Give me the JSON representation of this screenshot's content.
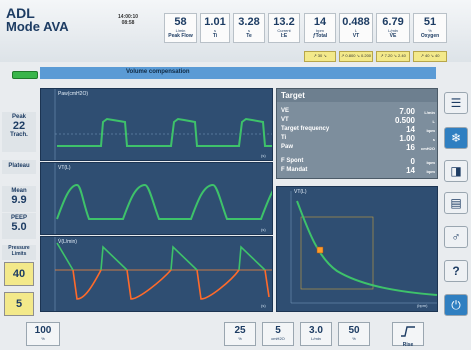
{
  "header": {
    "brand": "ADL",
    "mode": "Mode AVA",
    "time": "14:00:10",
    "time2": "08:58",
    "measurements": [
      {
        "value": "58",
        "unit": "L/min",
        "label": "Peak Flow"
      },
      {
        "value": "1.01",
        "unit": "s",
        "label": "Ti"
      },
      {
        "value": "3.28",
        "unit": "s",
        "label": "Te"
      },
      {
        "value": "13.2",
        "unit": "Current",
        "label": "I:E"
      },
      {
        "value": "14",
        "unit": "bpm",
        "label": "ƒTotal"
      },
      {
        "value": "0.488",
        "unit": "L",
        "label": "VT"
      },
      {
        "value": "6.79",
        "unit": "L/min",
        "label": "V̇E"
      },
      {
        "value": "51",
        "unit": "%",
        "label": "Oxygen"
      }
    ],
    "alarm_limits": [
      "↗ 30  ↘",
      "↗ 0.800  ↘ 0.200",
      "↗ 7.20  ↘ 2.40",
      "↗ 40  ↘ 40"
    ]
  },
  "mode_bar": {
    "label": "Volume compensation"
  },
  "left_panel": {
    "peak_label": "Peak",
    "peak_value": "22",
    "trach_label": "Trach.",
    "plateau_label": "Plateau",
    "mean_label": "Mean",
    "mean_value": "9.9",
    "peep_label": "PEEP",
    "peep_value": "5.0",
    "pressure_limits_label": "Pressure Limits",
    "pmax_value": "40",
    "pmin_value": "5"
  },
  "waveforms": [
    {
      "title": "Paw(cmH2O)",
      "ticks": [
        "40",
        "30",
        "20",
        "10",
        "0",
        "-10"
      ]
    },
    {
      "title": "VT(L)",
      "ticks": [
        "1.0",
        "0.8",
        "0.6",
        "0.4",
        "0.2",
        "0"
      ]
    },
    {
      "title": "V̇(L/min)",
      "ticks": [
        "100",
        "80",
        "60",
        "40",
        "20",
        "0",
        "-20",
        "-40",
        "-60",
        "-80",
        "-100"
      ]
    }
  ],
  "time_axis": {
    "ticks": [
      "2",
      "4",
      "6",
      "8",
      "10",
      "12"
    ],
    "unit": "(s)"
  },
  "target": {
    "title": "Target",
    "rows": [
      {
        "key": "VE",
        "value": "7.00",
        "unit": "L/min"
      },
      {
        "key": "VT",
        "value": "0.500",
        "unit": "L"
      },
      {
        "key": "Target frequency",
        "value": "14",
        "unit": "bpm"
      },
      {
        "key": "Ti",
        "value": "1.00",
        "unit": "s"
      },
      {
        "key": "Paw",
        "value": "16",
        "unit": "cmH2O"
      },
      {
        "key": "F Spont",
        "value": "0",
        "unit": "bpm"
      },
      {
        "key": "F Mandat",
        "value": "14",
        "unit": "bpm"
      }
    ]
  },
  "loop": {
    "title": "VT(L)",
    "xlabel": "(bpm)"
  },
  "bottom_controls": [
    {
      "value": "100",
      "unit": "%"
    },
    {
      "value": "25",
      "unit": "%"
    },
    {
      "value": "5",
      "unit": "cmH2O"
    },
    {
      "value": "3.0",
      "unit": "L/min"
    },
    {
      "value": "50",
      "unit": "%"
    },
    {
      "value": "Rise",
      "unit": ""
    }
  ]
}
